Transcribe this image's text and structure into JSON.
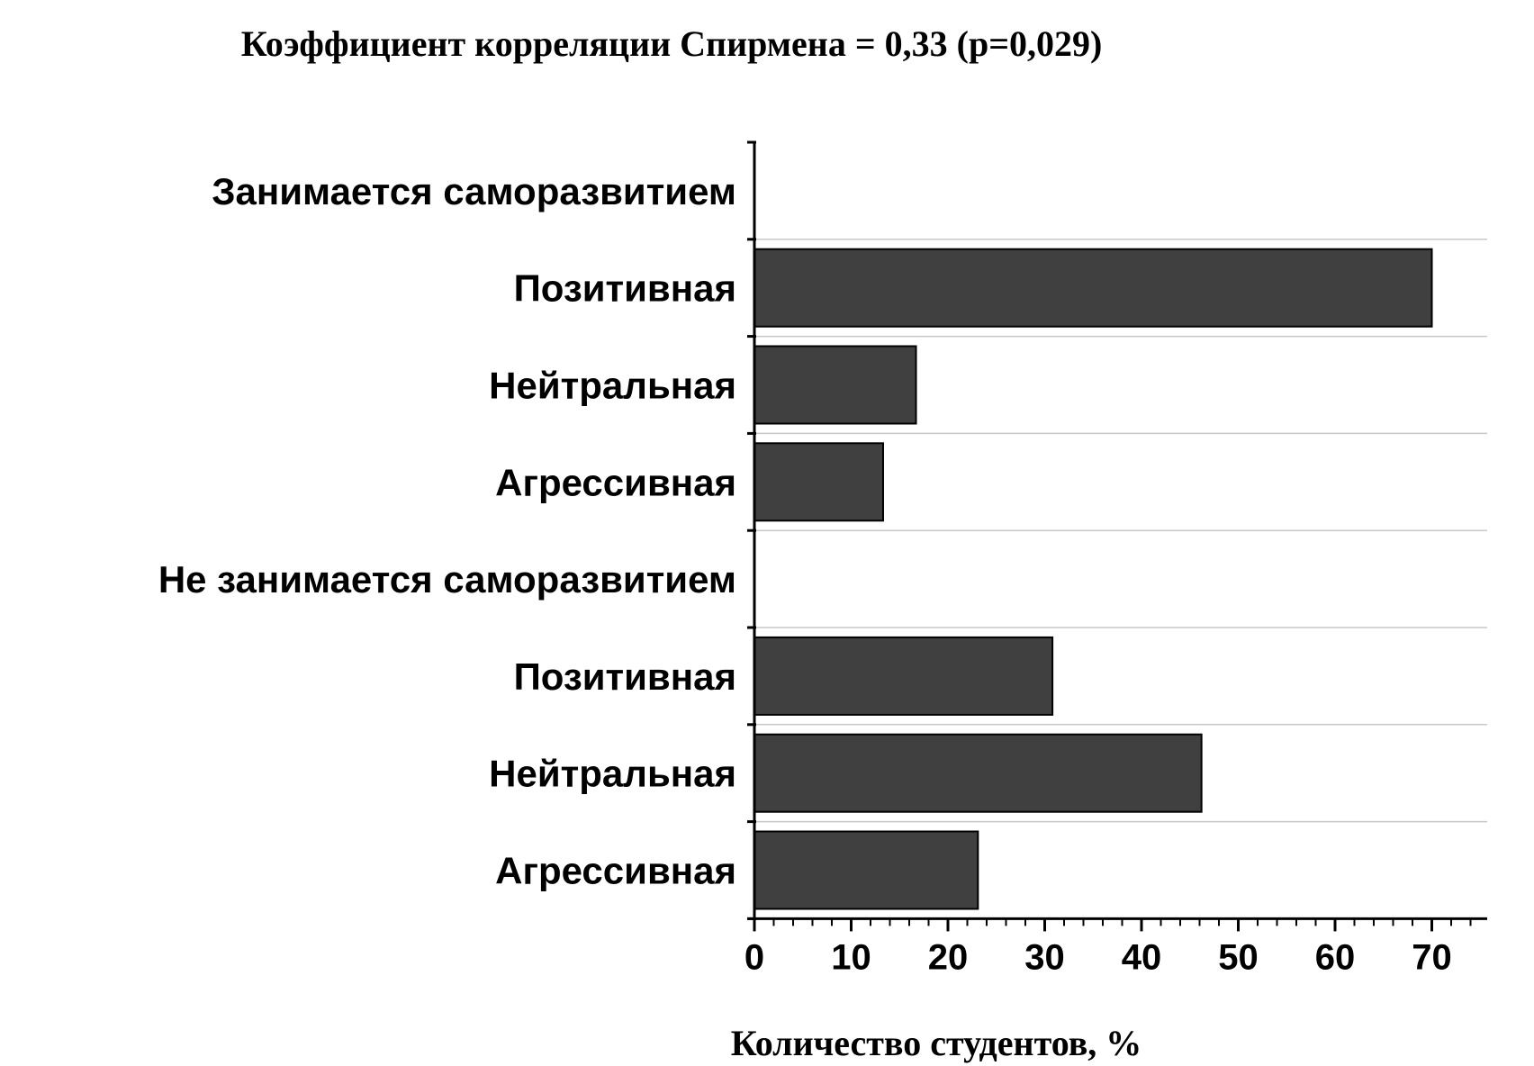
{
  "chart_data": {
    "type": "bar",
    "orientation": "horizontal",
    "title": "Коэффициент корреляции Спирмена = 0,33 (p=0,029)",
    "xlabel": "Количество студентов, %",
    "ylabel": "",
    "xlim": [
      0,
      75
    ],
    "xticks": [
      "0",
      "10",
      "20",
      "30",
      "40",
      "50",
      "60",
      "70"
    ],
    "grid": "horizontal",
    "bar_color": "#404040",
    "categories": [
      "Занимается саморазвитием",
      "Позитивная",
      "Нейтральная",
      "Агрессивная",
      "Не занимается саморазвитием",
      "Позитивная",
      "Нейтральная",
      "Агрессивная"
    ],
    "values": [
      null,
      70,
      16.7,
      13.3,
      null,
      30.8,
      46.2,
      23.1
    ]
  }
}
